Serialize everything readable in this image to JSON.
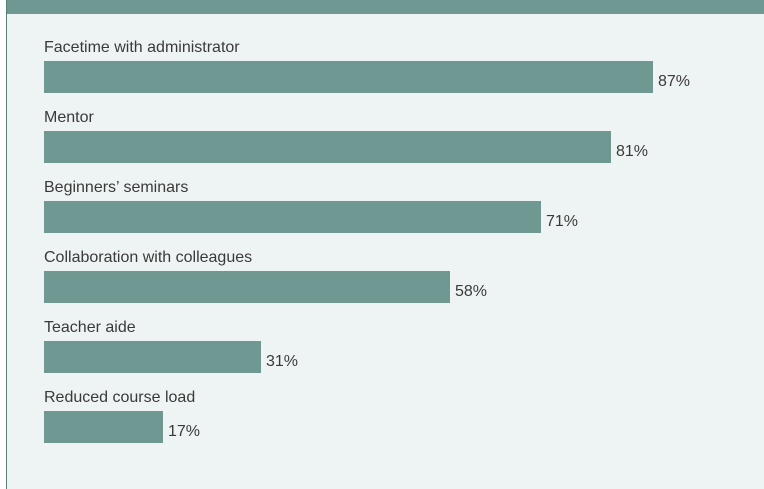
{
  "chart_data": {
    "type": "bar",
    "orientation": "horizontal",
    "title": "",
    "categories": [
      "Facetime with administrator",
      "Mentor",
      "Beginners’ seminars",
      "Collaboration with colleagues",
      "Teacher aide",
      "Reduced course load"
    ],
    "values": [
      87,
      81,
      71,
      58,
      31,
      17
    ],
    "value_labels": [
      "87%",
      "81%",
      "71%",
      "58%",
      "31%",
      "17%"
    ],
    "unit": "%",
    "xlim": [
      0,
      100
    ],
    "grid": false,
    "legend": "none",
    "bar_color": "#6f9893",
    "background_color": "#eef4f3"
  }
}
